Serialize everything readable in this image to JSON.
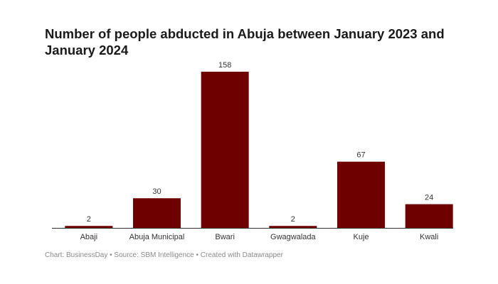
{
  "chart_data": {
    "type": "bar",
    "title": "Number of people abducted in Abuja between January 2023 and January 2024",
    "categories": [
      "Abaji",
      "Abuja Municipal",
      "Bwari",
      "Gwagwalada",
      "Kuje",
      "Kwali"
    ],
    "values": [
      2,
      30,
      158,
      2,
      67,
      24
    ],
    "xlabel": "",
    "ylabel": "",
    "ylim": [
      0,
      158
    ],
    "grid": false,
    "bar_color": "#6e0000",
    "data_labels": true
  },
  "footer": "Chart: BusinessDay • Source: SBM Intelligence • Created with Datawrapper"
}
